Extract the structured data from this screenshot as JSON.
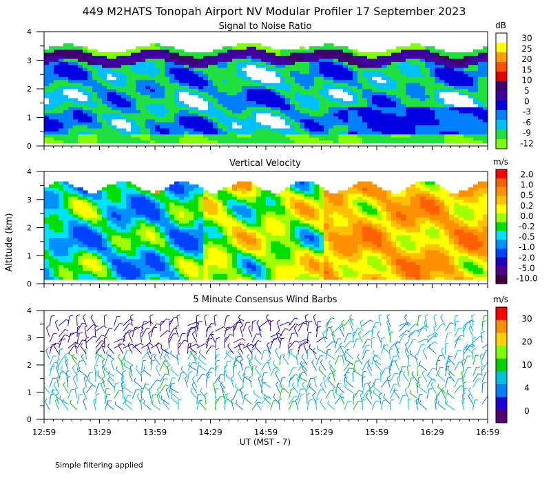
{
  "title": "449 M2HATS Tonopah Airport NV Modular Profiler 17 September 2023",
  "footnote": "Simple filtering applied",
  "shared_ylabel": "Altitude (km)",
  "shared_xlabel": "UT  (MST - 7)",
  "x_ticks": [
    "12:59",
    "13:29",
    "13:59",
    "14:29",
    "14:59",
    "15:29",
    "15:59",
    "16:29",
    "16:59"
  ],
  "y_ticks": [
    "0",
    "1",
    "2",
    "3",
    "4"
  ],
  "colors": {
    "snr": [
      "#80ff00",
      "#20e040",
      "#00c0ff",
      "#0080ff",
      "#0000e0",
      "#4000a0",
      "#400070",
      "#e00000",
      "#ff5000",
      "#ffa000",
      "#ffff00",
      "#ffffff"
    ],
    "velocity": [
      "#400040",
      "#500090",
      "#2000c0",
      "#0040ff",
      "#0090ff",
      "#00e0ff",
      "#00e000",
      "#a0ff00",
      "#ffff00",
      "#ffc000",
      "#ff9000",
      "#ff6000",
      "#ff0000"
    ],
    "wind": [
      "#500070",
      "#2000d0",
      "#0080ff",
      "#00c0e0",
      "#00d000",
      "#80ff00",
      "#ffd000",
      "#ff9000",
      "#ff0000"
    ]
  },
  "chart_data": [
    {
      "type": "heatmap",
      "title": "Signal to Noise Ratio",
      "xlabel": "UT  (MST - 7)",
      "ylabel": "Altitude (km)",
      "ylim": [
        0,
        4
      ],
      "xlim": [
        "12:59",
        "16:59"
      ],
      "colorbar_unit": "dB",
      "colorbar_ticks": [
        "30",
        "25",
        "20",
        "15",
        "10",
        "5",
        "0",
        "-3",
        "-6",
        "-9",
        "-12"
      ],
      "colorbar_range": [
        -12,
        30
      ],
      "description": "Weak SNR band near 3.0-3.3 km top, mostly -6 to 0 dB mid-levels, low SNR layer below 1 km after 15:59"
    },
    {
      "type": "heatmap",
      "title": "Vertical Velocity",
      "xlabel": "UT  (MST - 7)",
      "ylabel": "Altitude (km)",
      "ylim": [
        0,
        4
      ],
      "xlim": [
        "12:59",
        "16:59"
      ],
      "colorbar_unit": "m/s",
      "colorbar_ticks": [
        "2.0",
        "1.0",
        "0.5",
        "0.2",
        "0.0",
        "-0.2",
        "-0.5",
        "-1.0",
        "-2.0",
        "-5.0",
        "-10.0"
      ],
      "colorbar_range": [
        -10.0,
        2.0
      ],
      "description": "Mostly -0.5 to 0.5 m/s; upward motion (yellow) dominant after 15:29, downward (cyan) earlier"
    },
    {
      "type": "scatter",
      "title": "5 Minute Consensus Wind Barbs",
      "xlabel": "UT  (MST - 7)",
      "ylabel": "Altitude (km)",
      "ylim": [
        0,
        4
      ],
      "xlim": [
        "12:59",
        "16:59"
      ],
      "colorbar_unit": "m/s",
      "colorbar_ticks": [
        "30",
        "20",
        "10",
        "4",
        "0"
      ],
      "colorbar_range": [
        0,
        35
      ],
      "description": "Wind barbs every 5 min from ~0.3 to 3.7 km, mostly 0-10 m/s"
    }
  ]
}
